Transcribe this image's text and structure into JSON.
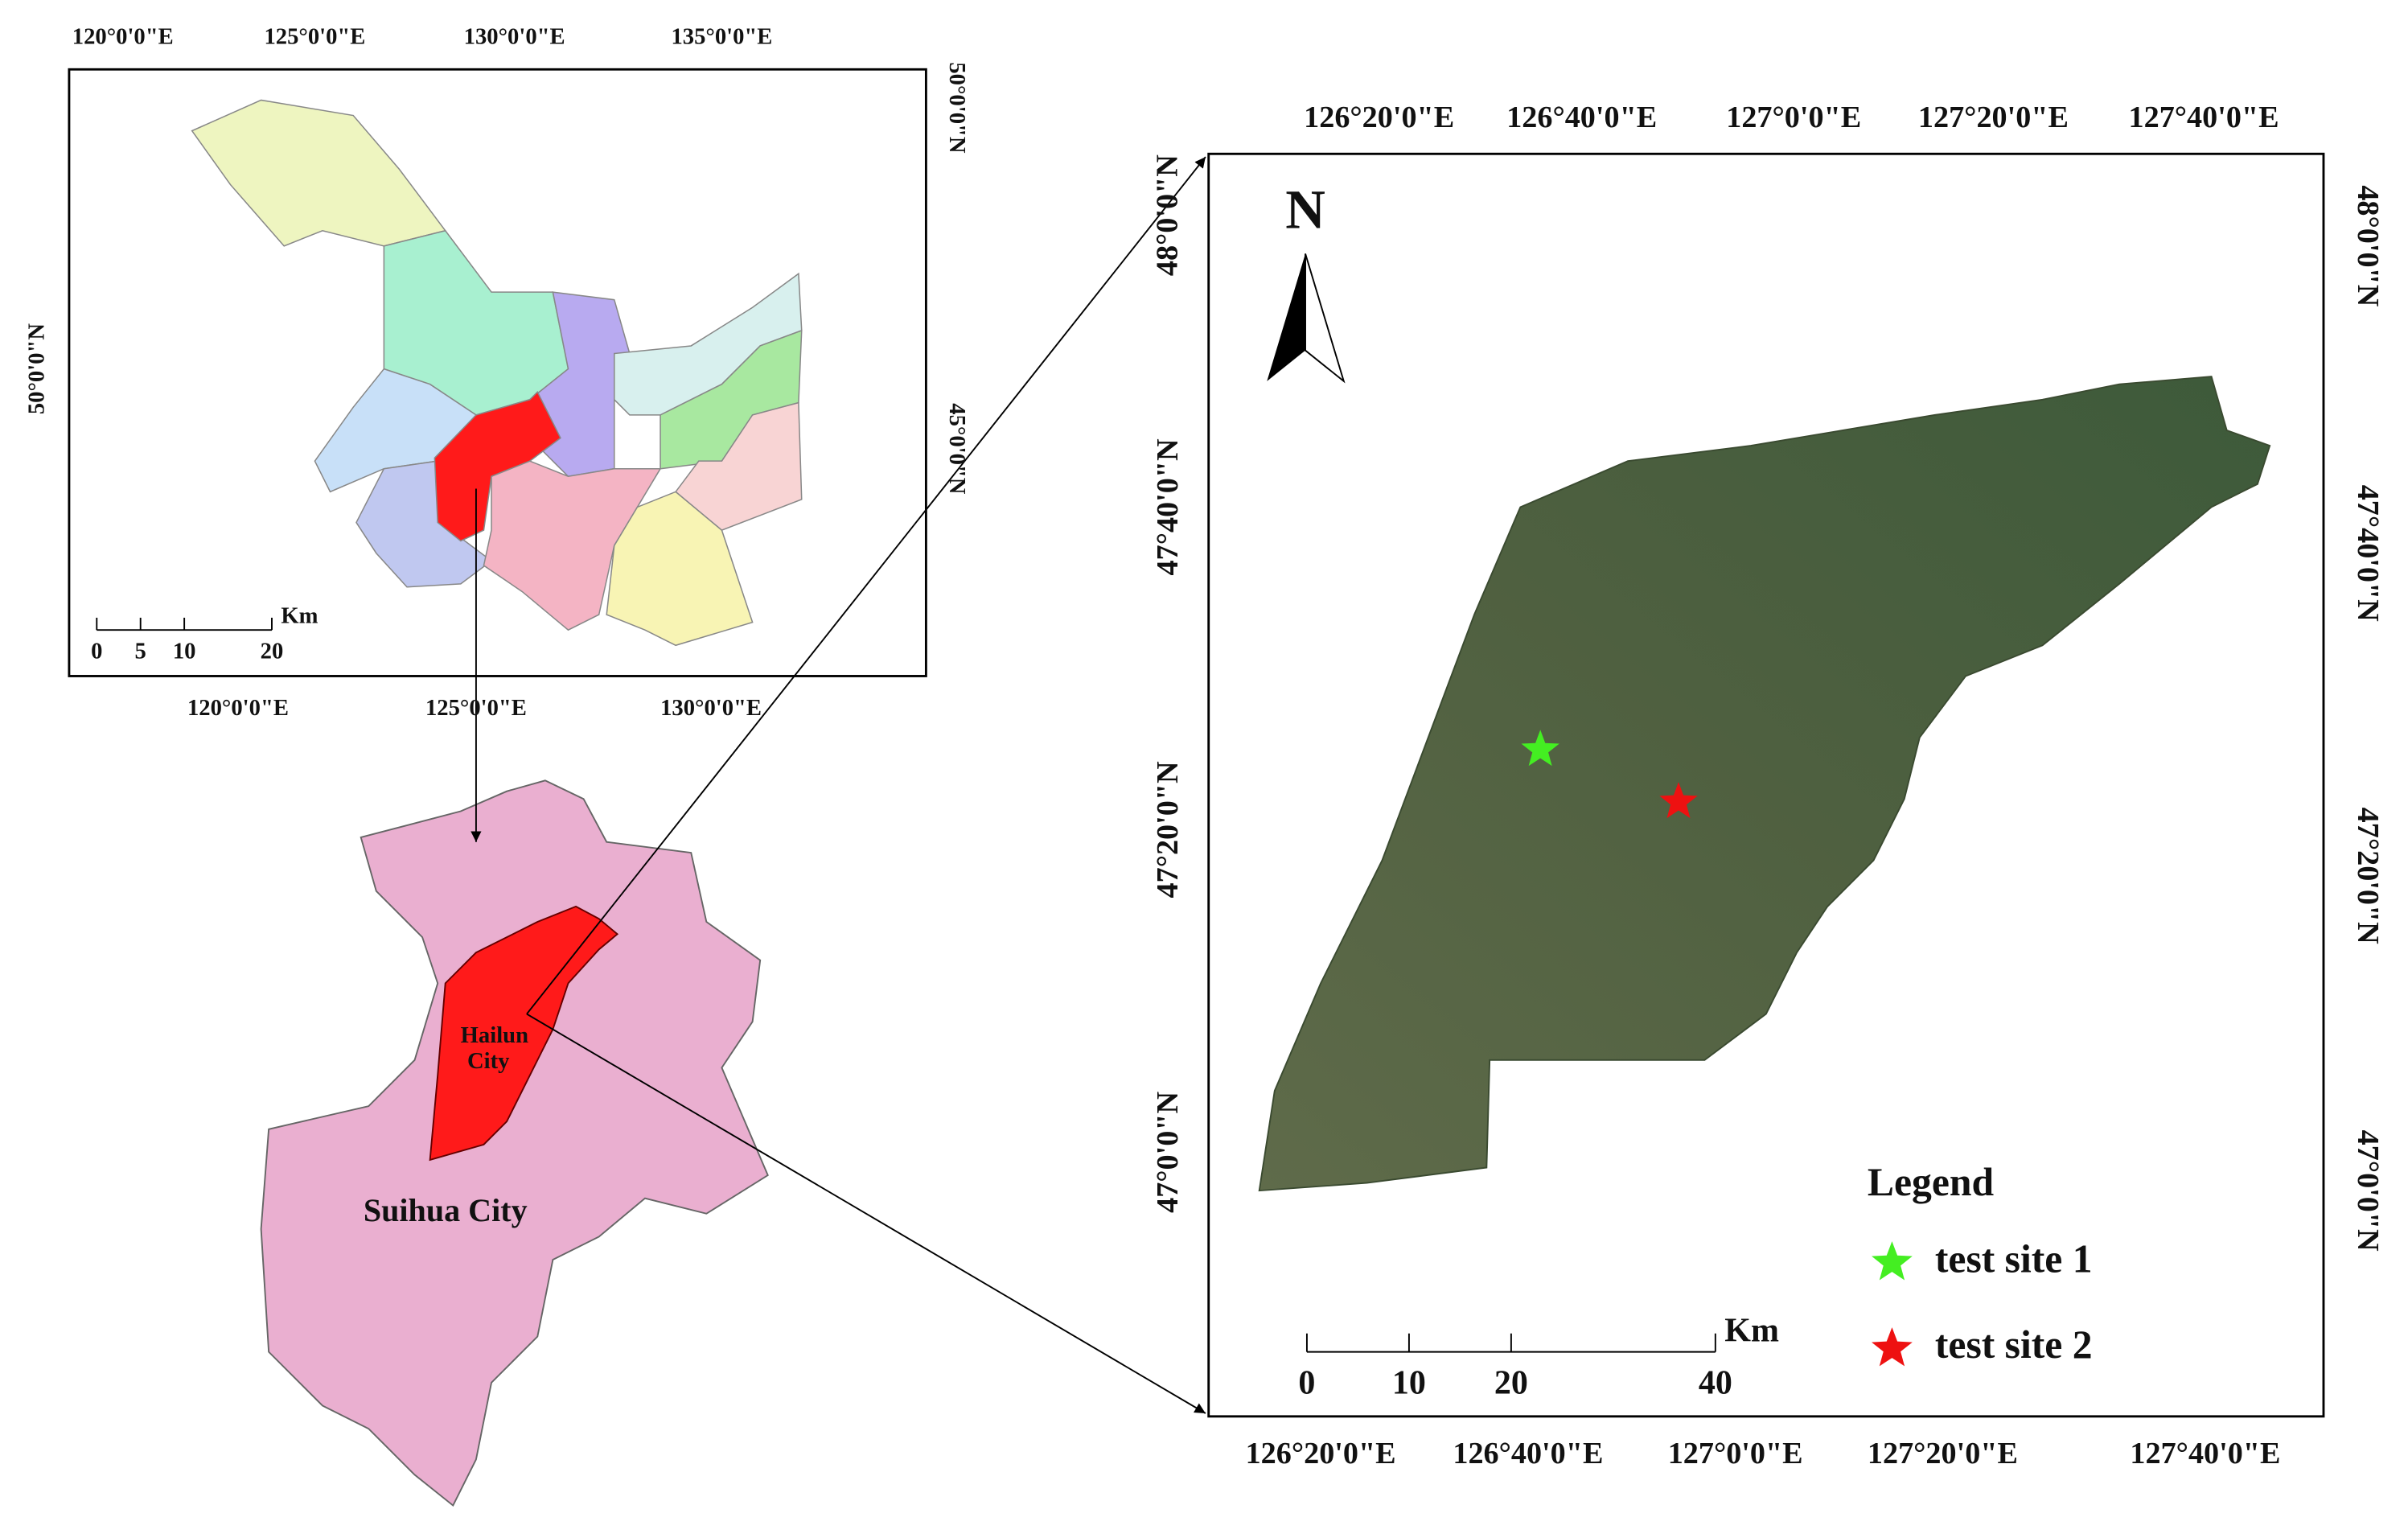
{
  "overview_map": {
    "top_labels": [
      "120°0'0\"E",
      "125°0'0\"E",
      "130°0'0\"E",
      "135°0'0\"E"
    ],
    "bottom_labels": [
      "120°0'0\"E",
      "125°0'0\"E",
      "130°0'0\"E"
    ],
    "left_labels": [
      "50°0'0\"N"
    ],
    "right_labels": [
      "50°0'0\"N",
      "45°0'0\"N"
    ],
    "scale": {
      "unit": "Km",
      "ticks": [
        0,
        5,
        10,
        20
      ]
    }
  },
  "city_map": {
    "hailun_label": [
      "Hailun",
      "City"
    ],
    "suihua_label": "Suihua City"
  },
  "detail_map": {
    "top_labels": [
      "126°20'0\"E",
      "126°40'0\"E",
      "127°0'0\"E",
      "127°20'0\"E",
      "127°40'0\"E"
    ],
    "bottom_labels": [
      "126°20'0\"E",
      "126°40'0\"E",
      "127°0'0\"E",
      "127°20'0\"E",
      "127°40'0\"E"
    ],
    "left_labels": [
      "48°0'0\"N",
      "47°40'0\"N",
      "47°20'0\"N",
      "47°0'0\"N"
    ],
    "right_labels": [
      "48°0'0\"N",
      "47°40'0\"N",
      "47°20'0\"N",
      "47°0'0\"N"
    ],
    "north": "N",
    "scale": {
      "unit": "Km",
      "ticks": [
        0,
        10,
        20,
        40
      ]
    },
    "legend": {
      "title": "Legend",
      "items": [
        {
          "label": "test site 1",
          "color": "#44ee22"
        },
        {
          "label": "test site 2",
          "color": "#ee1111"
        }
      ]
    }
  }
}
